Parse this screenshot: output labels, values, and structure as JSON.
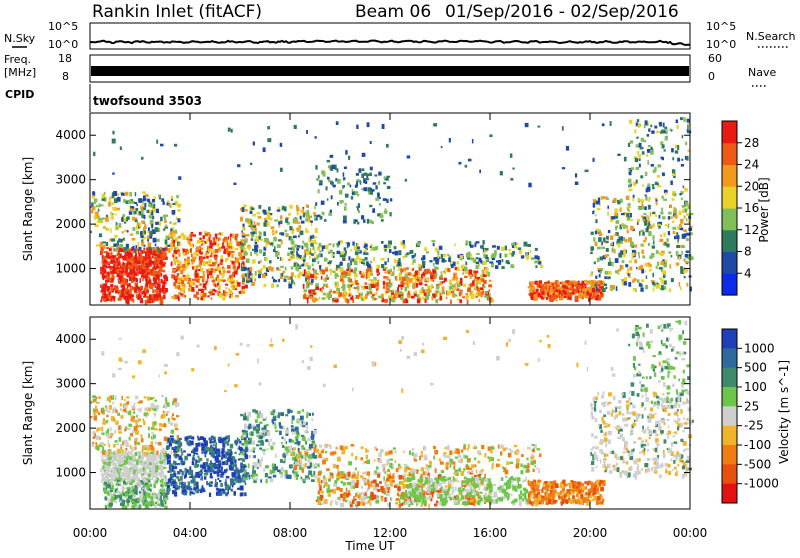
{
  "header": {
    "title": "Rankin Inlet (fitACF)",
    "beam": "Beam 06",
    "date_range": "01/Sep/2016 - 02/Sep/2016"
  },
  "aux_panels": {
    "nsky_label": "N.Sky",
    "nsearch_label": "N.Search",
    "nsky_ticks": [
      "10^5",
      "10^0"
    ],
    "nsearch_ticks": [
      "10^5",
      "10^0"
    ],
    "freq_label": "Freq.",
    "freq_unit": "[MHz]",
    "freq_ticks": [
      "18",
      "8"
    ],
    "nave_label": "Nave",
    "nave_ticks": [
      "60",
      "0"
    ],
    "cpid_label": "CPID",
    "cpid_value": "twofsound 3503"
  },
  "chart_data": [
    {
      "type": "heatmap",
      "name": "power",
      "ylabel": "Slant Range [km]",
      "yticks": [
        1000,
        2000,
        3000,
        4000
      ],
      "ylim": [
        180,
        4500
      ],
      "colorbar": {
        "label": "Power [dB]",
        "ticks": [
          4,
          8,
          12,
          16,
          20,
          24,
          28
        ],
        "colors": [
          "#0a2be8",
          "#1e4aa6",
          "#2f7a5e",
          "#7fbf5a",
          "#ead22b",
          "#f39a1e",
          "#ef5a16",
          "#e81a12"
        ]
      }
    },
    {
      "type": "heatmap",
      "name": "velocity",
      "ylabel": "Slant Range [km]",
      "yticks": [
        1000,
        2000,
        3000,
        4000
      ],
      "ylim": [
        180,
        4500
      ],
      "xlabel": "Time UT",
      "xticks": [
        "00:00",
        "04:00",
        "08:00",
        "12:00",
        "16:00",
        "20:00",
        "00:00"
      ],
      "colorbar": {
        "label": "Velocity [m s^-1]",
        "ticks": [
          "1000",
          "500",
          "100",
          "25",
          "-25",
          "-100",
          "-500",
          "-1000"
        ],
        "colors": [
          "#1f40b8",
          "#2f6a9e",
          "#3f8a6a",
          "#6cc64a",
          "#cfcfcf",
          "#f0b42a",
          "#f07d14",
          "#e8500f",
          "#e01212"
        ]
      }
    }
  ]
}
